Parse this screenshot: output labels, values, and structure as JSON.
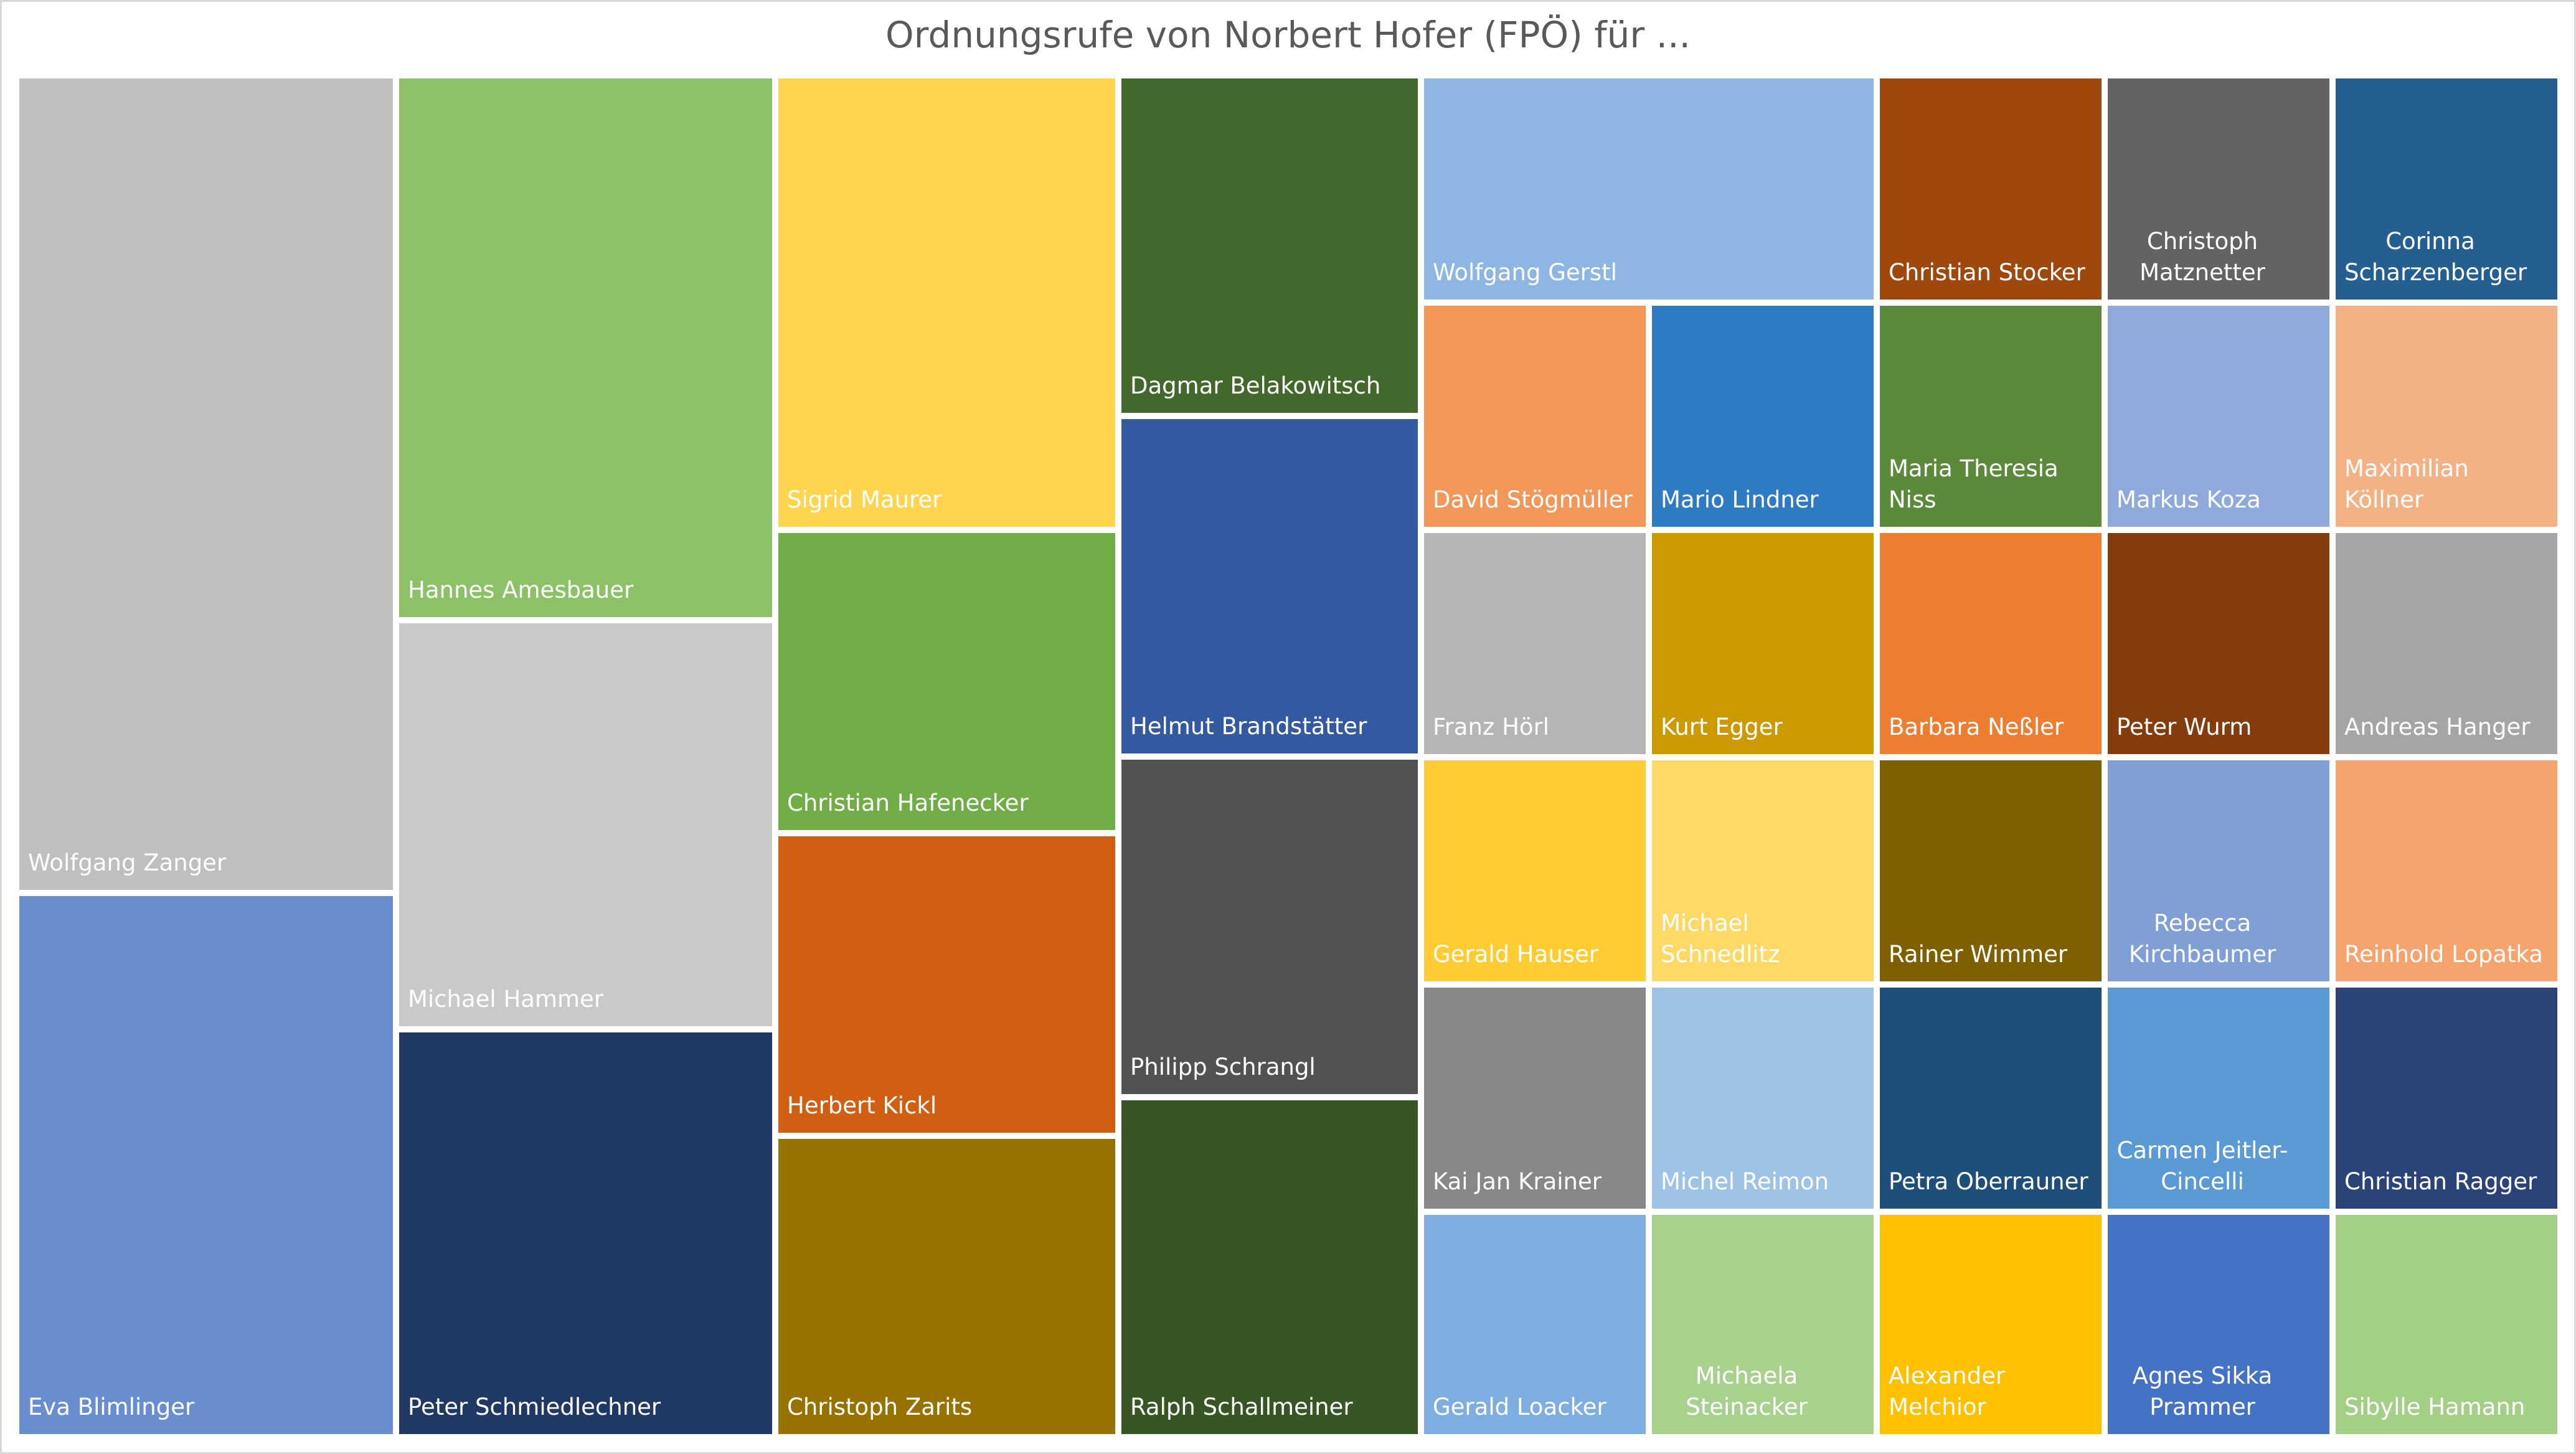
{
  "chart_data": {
    "type": "treemap",
    "title": "Ordnungsrufe von Norbert Hofer (FPÖ) für ...",
    "items": [
      {
        "name": "Wolfgang Zanger",
        "value": 6,
        "color": "#bfbfbf"
      },
      {
        "name": "Eva Blimlinger",
        "value": 4,
        "color": "#698ed0"
      },
      {
        "name": "Hannes Amesbauer",
        "value": 4,
        "color": "#8cc168"
      },
      {
        "name": "Michael Hammer",
        "value": 3,
        "color": "#c9c9c9"
      },
      {
        "name": "Peter Schmiedlechner",
        "value": 3,
        "color": "#203864"
      },
      {
        "name": "Sigrid Maurer",
        "value": 3,
        "color": "#ffd54f"
      },
      {
        "name": "Christian Hafenecker",
        "value": 2,
        "color": "#70ad47"
      },
      {
        "name": "Herbert Kickl",
        "value": 2,
        "color": "#d15f12"
      },
      {
        "name": "Christoph Zarits",
        "value": 2,
        "color": "#967300"
      },
      {
        "name": "Dagmar Belakowitsch",
        "value": 2,
        "color": "#43682b"
      },
      {
        "name": "Helmut Brandstätter",
        "value": 2,
        "color": "#335aa1"
      },
      {
        "name": "Philipp Schrangl",
        "value": 2,
        "color": "#525252"
      },
      {
        "name": "Ralph Schallmeiner",
        "value": 2,
        "color": "#375623"
      },
      {
        "name": "Wolfgang Gerstl",
        "value": 2,
        "color": "#8db6e2"
      },
      {
        "name": "Christian Stocker",
        "value": 1,
        "color": "#9e480e"
      },
      {
        "name": "Christoph Matznetter",
        "value": 1,
        "color": "#636363"
      },
      {
        "name": "Corinna Scharzenberger",
        "value": 1,
        "color": "#255e91"
      },
      {
        "name": "David Stögmüller",
        "value": 1,
        "color": "#f1975a"
      },
      {
        "name": "Mario Lindner",
        "value": 1,
        "color": "#2f7bc2"
      },
      {
        "name": "Maria Theresia Niss",
        "value": 1,
        "color": "#5a8a3a"
      },
      {
        "name": "Markus Koza",
        "value": 1,
        "color": "#8eaadb"
      },
      {
        "name": "Maximilian Köllner",
        "value": 1,
        "color": "#f4b183"
      },
      {
        "name": "Franz Hörl",
        "value": 1,
        "color": "#b5b5b5"
      },
      {
        "name": "Kurt Egger",
        "value": 1,
        "color": "#cc9900"
      },
      {
        "name": "Barbara Neßler",
        "value": 1,
        "color": "#ed7d31"
      },
      {
        "name": "Peter Wurm",
        "value": 1,
        "color": "#843c0c"
      },
      {
        "name": "Andreas Hanger",
        "value": 1,
        "color": "#a5a5a5"
      },
      {
        "name": "Gerald Hauser",
        "value": 1,
        "color": "#ffcc33"
      },
      {
        "name": "Michael Schnedlitz",
        "value": 1,
        "color": "#ffd966"
      },
      {
        "name": "Rainer Wimmer",
        "value": 1,
        "color": "#7f6000"
      },
      {
        "name": "Rebecca Kirchbaumer",
        "value": 1,
        "color": "#7f9fd5"
      },
      {
        "name": "Reinhold Lopatka",
        "value": 1,
        "color": "#f4a46c"
      },
      {
        "name": "Kai Jan Krainer",
        "value": 1,
        "color": "#878787"
      },
      {
        "name": "Michel Reimon",
        "value": 1,
        "color": "#9dc3e6"
      },
      {
        "name": "Petra Oberrauner",
        "value": 1,
        "color": "#1f4e79"
      },
      {
        "name": "Carmen Jeitler-Cincelli",
        "value": 1,
        "color": "#5b9bd5"
      },
      {
        "name": "Christian Ragger",
        "value": 1,
        "color": "#2a4478"
      },
      {
        "name": "Gerald Loacker",
        "value": 1,
        "color": "#7eaee0"
      },
      {
        "name": "Michaela Steinacker",
        "value": 1,
        "color": "#a9d18e"
      },
      {
        "name": "Alexander Melchior",
        "value": 1,
        "color": "#ffc000"
      },
      {
        "name": "Agnes Sikka Prammer",
        "value": 1,
        "color": "#4472c4"
      },
      {
        "name": "Sibylle Hamann",
        "value": 1,
        "color": "#a3cf86"
      }
    ]
  }
}
